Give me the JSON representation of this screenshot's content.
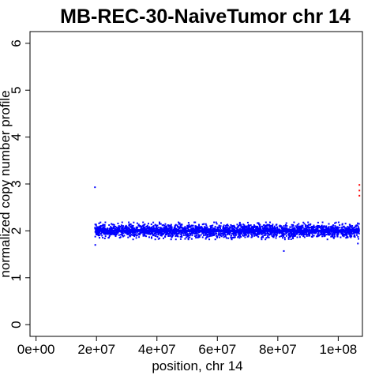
{
  "chart_data": {
    "type": "scatter",
    "title": "MB-REC-30-NaiveTumor chr 14",
    "xlabel": "position, chr 14",
    "ylabel": "normalized copy number profile",
    "xlim": [
      -2000000,
      108000000
    ],
    "ylim": [
      -0.25,
      6.25
    ],
    "x_ticks": [
      0,
      20000000,
      40000000,
      60000000,
      80000000,
      100000000
    ],
    "x_tick_labels": [
      "0e+00",
      "2e+07",
      "4e+07",
      "6e+07",
      "8e+07",
      "1e+08"
    ],
    "y_ticks": [
      0,
      1,
      2,
      3,
      4,
      5,
      6
    ],
    "y_tick_labels": [
      "0",
      "1",
      "2",
      "3",
      "4",
      "5",
      "6"
    ],
    "grid": false,
    "colors": {
      "points": "#0000ff",
      "segment": "#0000ff",
      "outliers": "#ff0000",
      "axis": "#000000"
    },
    "series": [
      {
        "kind": "points",
        "x_range": [
          19500000,
          107000000
        ],
        "baseline": 2.0,
        "spread": 0.07,
        "approx_count": 2600
      },
      {
        "kind": "segment",
        "x": [
          19500000,
          107000000
        ],
        "y": [
          2.0,
          2.0
        ]
      },
      {
        "kind": "sparse_points",
        "points": [
          [
            19500000,
            2.93
          ],
          [
            19600000,
            1.7
          ],
          [
            82000000,
            1.57
          ],
          [
            106500000,
            1.73
          ]
        ]
      },
      {
        "kind": "outliers",
        "points": [
          [
            107000000,
            2.98
          ],
          [
            107000000,
            2.86
          ],
          [
            107000000,
            2.75
          ]
        ]
      }
    ]
  }
}
